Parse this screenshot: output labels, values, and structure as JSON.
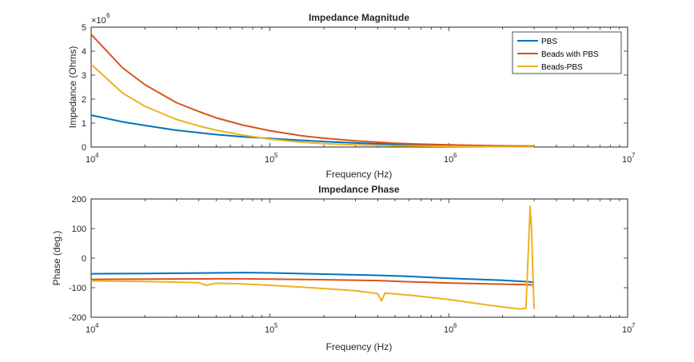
{
  "chart_data": [
    {
      "type": "line",
      "title": "Impedance Magnitude",
      "xlabel": "Frequency (Hz)",
      "ylabel": "Impedance (Ohms)",
      "xscale": "log",
      "xlim": [
        10000,
        10000000
      ],
      "ylim": [
        0,
        5
      ],
      "y_multiplier_label": "×10",
      "y_multiplier_exp": "6",
      "x_ticks": [
        {
          "base": "10",
          "exp": "4"
        },
        {
          "base": "10",
          "exp": "5"
        },
        {
          "base": "10",
          "exp": "6"
        },
        {
          "base": "10",
          "exp": "7"
        }
      ],
      "y_ticks": [
        "0",
        "1",
        "2",
        "3",
        "4",
        "5"
      ],
      "legend": "top-right",
      "series": [
        {
          "name": "PBS",
          "color": "#0072BD",
          "x": [
            10000,
            15000,
            20000,
            30000,
            40000,
            50000,
            70000,
            100000,
            150000,
            200000,
            300000,
            500000,
            700000,
            1000000,
            2000000,
            3000000
          ],
          "y": [
            1.33,
            1.05,
            0.9,
            0.7,
            0.6,
            0.52,
            0.43,
            0.36,
            0.28,
            0.23,
            0.17,
            0.11,
            0.08,
            0.06,
            0.035,
            0.025
          ]
        },
        {
          "name": "Beads with PBS",
          "color": "#D95319",
          "x": [
            10000,
            15000,
            20000,
            30000,
            40000,
            50000,
            70000,
            100000,
            150000,
            200000,
            300000,
            500000,
            700000,
            1000000,
            2000000,
            3000000
          ],
          "y": [
            4.7,
            3.3,
            2.6,
            1.85,
            1.48,
            1.22,
            0.92,
            0.68,
            0.47,
            0.37,
            0.26,
            0.16,
            0.12,
            0.09,
            0.05,
            0.04
          ]
        },
        {
          "name": "Beads-PBS",
          "color": "#EDB120",
          "x": [
            10000,
            15000,
            20000,
            30000,
            40000,
            50000,
            70000,
            100000,
            150000,
            200000,
            300000,
            500000,
            700000,
            1000000,
            2000000,
            3000000
          ],
          "y": [
            3.45,
            2.25,
            1.7,
            1.15,
            0.88,
            0.7,
            0.5,
            0.33,
            0.2,
            0.14,
            0.09,
            0.05,
            0.04,
            0.03,
            0.015,
            0.015
          ]
        }
      ]
    },
    {
      "type": "line",
      "title": "Impedance Phase",
      "xlabel": "Frequency (Hz)",
      "ylabel": "Phase (deg.)",
      "xscale": "log",
      "xlim": [
        10000,
        10000000
      ],
      "ylim": [
        -200,
        200
      ],
      "x_ticks": [
        {
          "base": "10",
          "exp": "4"
        },
        {
          "base": "10",
          "exp": "5"
        },
        {
          "base": "10",
          "exp": "6"
        },
        {
          "base": "10",
          "exp": "7"
        }
      ],
      "y_ticks": [
        "-200",
        "-100",
        "0",
        "100",
        "200"
      ],
      "series": [
        {
          "name": "PBS",
          "color": "#0072BD",
          "x": [
            10000,
            20000,
            50000,
            70000,
            100000,
            200000,
            400000,
            600000,
            1000000,
            2000000,
            2800000,
            3000000
          ],
          "y": [
            -53,
            -52,
            -50,
            -49,
            -50,
            -54,
            -58,
            -62,
            -68,
            -75,
            -80,
            -82
          ]
        },
        {
          "name": "Beads with PBS",
          "color": "#D95319",
          "x": [
            10000,
            20000,
            50000,
            70000,
            100000,
            200000,
            400000,
            600000,
            1000000,
            2000000,
            2800000,
            3000000
          ],
          "y": [
            -72,
            -71,
            -70,
            -70,
            -71,
            -73,
            -76,
            -80,
            -84,
            -88,
            -90,
            -91
          ]
        },
        {
          "name": "Beads-PBS",
          "color": "#EDB120",
          "x": [
            10000,
            20000,
            40000,
            44000,
            50000,
            70000,
            100000,
            150000,
            200000,
            300000,
            400000,
            420000,
            440000,
            600000,
            1000000,
            1500000,
            2000000,
            2500000,
            2700000,
            2850000,
            2900000,
            2950000,
            3000000
          ],
          "y": [
            -77,
            -79,
            -83,
            -92,
            -85,
            -87,
            -92,
            -98,
            -103,
            -110,
            -120,
            -145,
            -118,
            -125,
            -140,
            -155,
            -165,
            -172,
            -170,
            175,
            100,
            -50,
            -172
          ]
        }
      ]
    }
  ]
}
